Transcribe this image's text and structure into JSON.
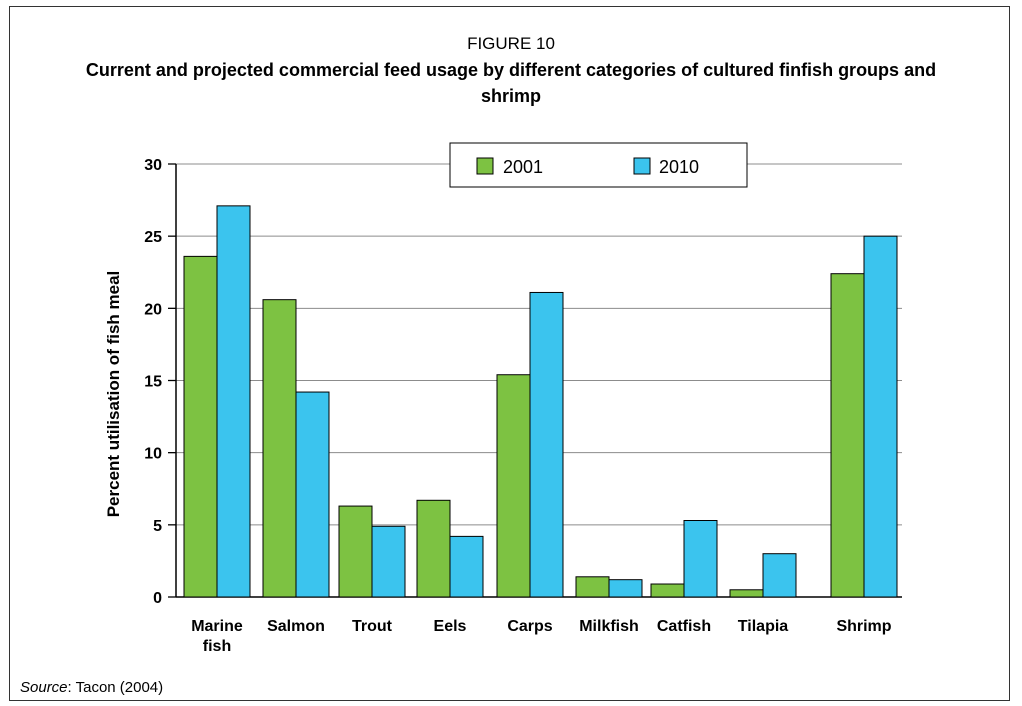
{
  "figure_label": "FIGURE 10",
  "title": "Current and projected commercial feed usage by different categories of cultured finfish groups and shrimp",
  "source_label": "Source",
  "source_text": ": Tacon (2004)",
  "colors": {
    "2001": "#7dc242",
    "2010": "#3bc4ee",
    "grid": "#8c8c8c"
  },
  "chart_data": {
    "type": "bar",
    "categories": [
      [
        "Marine",
        "fish"
      ],
      [
        "Salmon"
      ],
      [
        "Trout"
      ],
      [
        "Eels"
      ],
      [
        "Carps"
      ],
      [
        "Milkfish"
      ],
      [
        "Catfish"
      ],
      [
        "Tilapia"
      ],
      [
        "Shrimp"
      ]
    ],
    "series": [
      {
        "name": "2001",
        "values": [
          23.6,
          20.6,
          6.3,
          6.7,
          15.4,
          1.4,
          0.9,
          0.5,
          22.4
        ]
      },
      {
        "name": "2010",
        "values": [
          27.1,
          14.2,
          4.9,
          4.2,
          21.1,
          1.2,
          5.3,
          3.0,
          25.0
        ]
      }
    ],
    "xlabel": "",
    "ylabel": "Percent utilisation of fish meal",
    "ylim": [
      0,
      30
    ],
    "yticks": [
      0,
      5,
      10,
      15,
      20,
      25,
      30
    ],
    "grid": true,
    "legend_position": "top-right"
  }
}
